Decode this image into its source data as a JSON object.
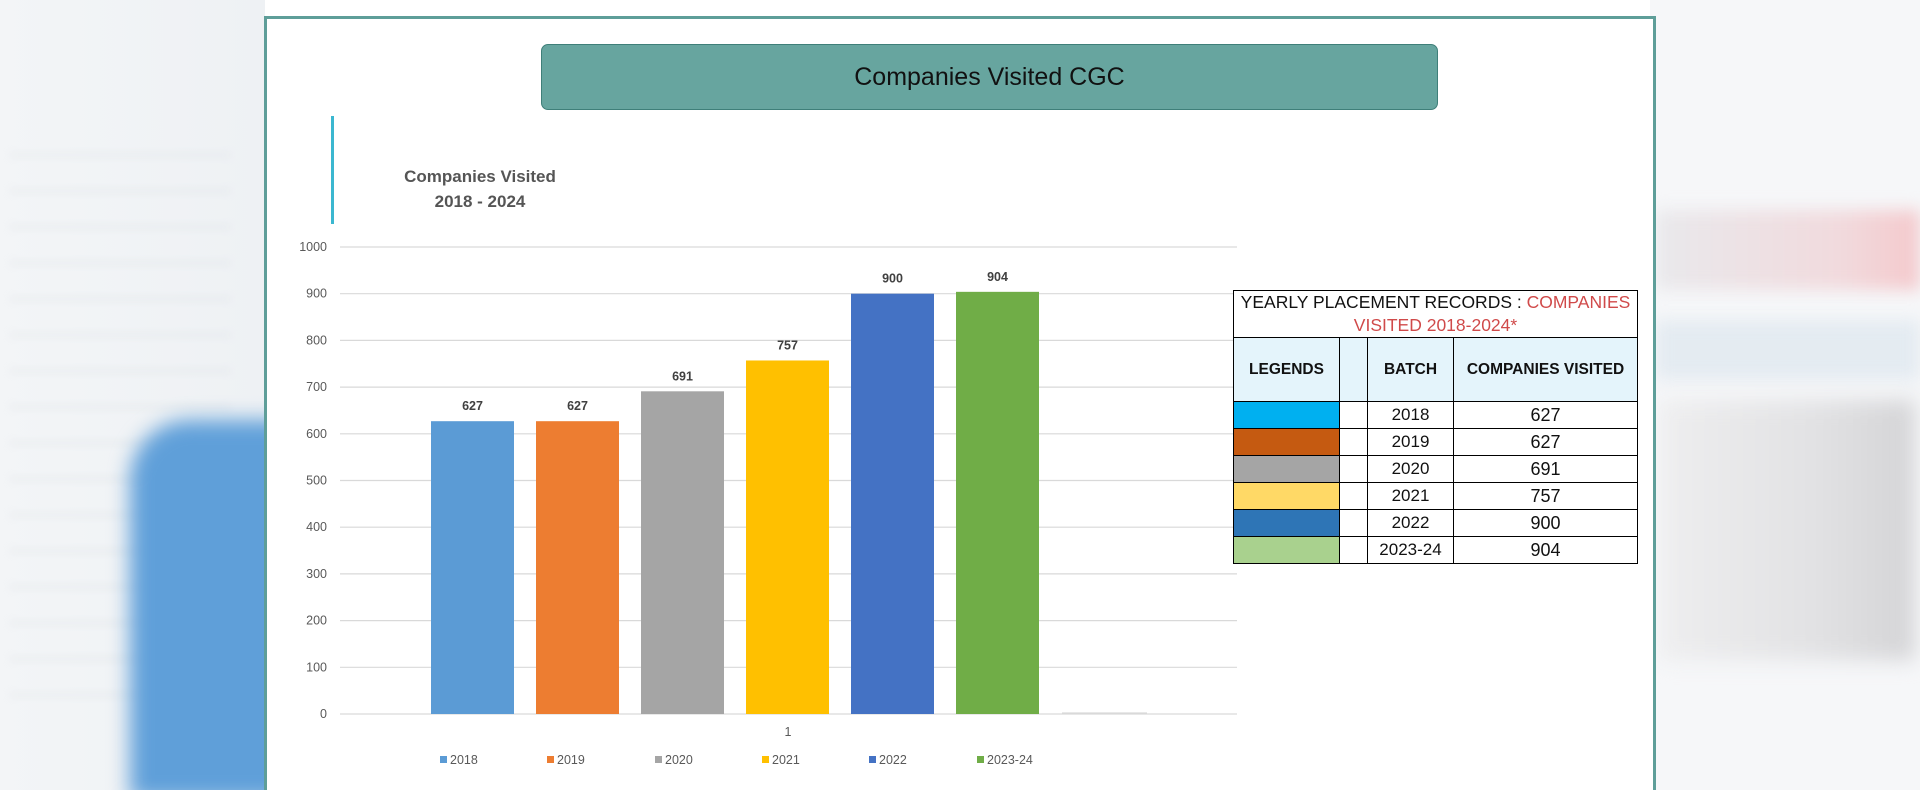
{
  "banner_title": "Companies Visited CGC",
  "colors": {
    "frame": "#5e9e99",
    "banner": "#67a59f",
    "table_header": "#e4f4fb",
    "caption_red": "#d04a4a"
  },
  "chart_data": {
    "type": "bar",
    "title": [
      "Companies Visited",
      "2018 - 2024"
    ],
    "categories": [
      "1"
    ],
    "series": [
      {
        "name": "2018",
        "values": [
          627
        ],
        "color": "#5b9bd5"
      },
      {
        "name": "2019",
        "values": [
          627
        ],
        "color": "#ed7d31"
      },
      {
        "name": "2020",
        "values": [
          691
        ],
        "color": "#a5a5a5"
      },
      {
        "name": "2021",
        "values": [
          757
        ],
        "color": "#ffc000"
      },
      {
        "name": "2022",
        "values": [
          900
        ],
        "color": "#4472c4"
      },
      {
        "name": "2023-24",
        "values": [
          904
        ],
        "color": "#70ad47"
      }
    ],
    "ylim": [
      0,
      1000
    ],
    "yticks": [
      0,
      100,
      200,
      300,
      400,
      500,
      600,
      700,
      800,
      900,
      1000
    ],
    "data_labels": true,
    "grid": true,
    "legend": "bottom"
  },
  "table": {
    "caption_prefix": "YEARLY PLACEMENT RECORDS : ",
    "caption_highlight_line1": "COMPANIES",
    "caption_highlight_line2": "VISITED 2018-2024*",
    "headers": {
      "legends": "LEGENDS",
      "batch": "BATCH",
      "companies": "COMPANIES VISITED"
    },
    "rows": [
      {
        "color": "#00b0f0",
        "batch": "2018",
        "companies": "627"
      },
      {
        "color": "#c55a11",
        "batch": "2019",
        "companies": "627"
      },
      {
        "color": "#a5a5a5",
        "batch": "2020",
        "companies": "691"
      },
      {
        "color": "#ffd966",
        "batch": "2021",
        "companies": "757"
      },
      {
        "color": "#2e75b6",
        "batch": "2022",
        "companies": "900"
      },
      {
        "color": "#a9d18e",
        "batch": "2023-24",
        "companies": "904"
      }
    ]
  }
}
